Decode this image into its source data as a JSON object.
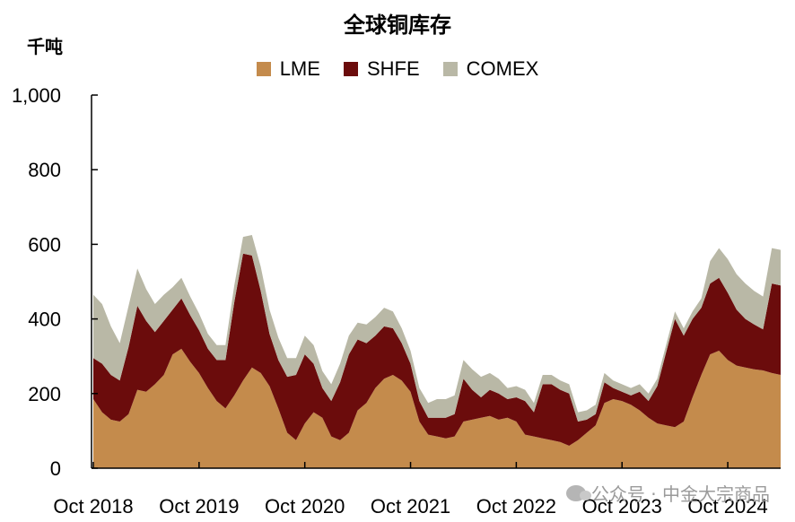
{
  "chart_data": {
    "type": "area",
    "stacked": true,
    "title": "全球铜库存",
    "ylabel": "千吨",
    "ylim": [
      0,
      1000
    ],
    "yticks": [
      "0",
      "200",
      "400",
      "600",
      "800",
      "1,000"
    ],
    "xticks": [
      "Oct 2018",
      "Oct 2019",
      "Oct 2020",
      "Oct 2021",
      "Oct 2022",
      "Oct 2023",
      "Oct 2024"
    ],
    "legend_position": "top-center",
    "x": [
      "2018-10",
      "2018-11",
      "2018-12",
      "2019-01",
      "2019-02",
      "2019-03",
      "2019-04",
      "2019-05",
      "2019-06",
      "2019-07",
      "2019-08",
      "2019-09",
      "2019-10",
      "2019-11",
      "2019-12",
      "2020-01",
      "2020-02",
      "2020-03",
      "2020-04",
      "2020-05",
      "2020-06",
      "2020-07",
      "2020-08",
      "2020-09",
      "2020-10",
      "2020-11",
      "2020-12",
      "2021-01",
      "2021-02",
      "2021-03",
      "2021-04",
      "2021-05",
      "2021-06",
      "2021-07",
      "2021-08",
      "2021-09",
      "2021-10",
      "2021-11",
      "2021-12",
      "2022-01",
      "2022-02",
      "2022-03",
      "2022-04",
      "2022-05",
      "2022-06",
      "2022-07",
      "2022-08",
      "2022-09",
      "2022-10",
      "2022-11",
      "2022-12",
      "2023-01",
      "2023-02",
      "2023-03",
      "2023-04",
      "2023-05",
      "2023-06",
      "2023-07",
      "2023-08",
      "2023-09",
      "2023-10",
      "2023-11",
      "2023-12",
      "2024-01",
      "2024-02",
      "2024-03",
      "2024-04",
      "2024-05",
      "2024-06",
      "2024-07",
      "2024-08",
      "2024-09",
      "2024-10",
      "2024-11",
      "2024-12",
      "2025-01",
      "2025-02",
      "2025-03",
      "2025-04"
    ],
    "series": [
      {
        "name": "LME",
        "color": "#c48b4c",
        "values": [
          185,
          150,
          130,
          125,
          145,
          210,
          205,
          225,
          250,
          305,
          320,
          285,
          255,
          215,
          180,
          160,
          195,
          235,
          270,
          255,
          220,
          160,
          95,
          75,
          120,
          150,
          135,
          85,
          75,
          95,
          155,
          175,
          215,
          240,
          250,
          235,
          205,
          125,
          90,
          85,
          80,
          85,
          125,
          130,
          135,
          140,
          130,
          135,
          125,
          90,
          85,
          80,
          75,
          70,
          60,
          75,
          95,
          115,
          175,
          185,
          180,
          170,
          155,
          135,
          120,
          115,
          110,
          125,
          190,
          250,
          305,
          315,
          290,
          275,
          270,
          265,
          262,
          255,
          250
        ]
      },
      {
        "name": "SHFE",
        "color": "#6b0c0c",
        "values": [
          110,
          130,
          120,
          110,
          180,
          225,
          190,
          140,
          145,
          120,
          135,
          125,
          115,
          105,
          110,
          130,
          250,
          340,
          300,
          220,
          140,
          130,
          150,
          175,
          185,
          130,
          80,
          95,
          155,
          210,
          190,
          160,
          140,
          140,
          125,
          100,
          75,
          55,
          45,
          50,
          55,
          60,
          115,
          80,
          55,
          70,
          70,
          50,
          65,
          90,
          65,
          145,
          150,
          140,
          140,
          50,
          35,
          30,
          55,
          30,
          25,
          25,
          50,
          45,
          100,
          195,
          290,
          230,
          210,
          180,
          190,
          195,
          180,
          150,
          130,
          120,
          110,
          240,
          240
        ]
      },
      {
        "name": "COMEX",
        "color": "#b9b8a6",
        "values": [
          170,
          160,
          130,
          100,
          110,
          100,
          85,
          75,
          70,
          60,
          55,
          50,
          45,
          40,
          40,
          40,
          45,
          45,
          55,
          65,
          65,
          60,
          50,
          45,
          50,
          50,
          45,
          45,
          50,
          50,
          45,
          50,
          50,
          50,
          45,
          40,
          35,
          35,
          40,
          50,
          50,
          50,
          50,
          55,
          55,
          45,
          40,
          30,
          30,
          30,
          25,
          25,
          25,
          25,
          25,
          25,
          25,
          25,
          25,
          20,
          20,
          20,
          20,
          20,
          20,
          20,
          20,
          20,
          20,
          25,
          60,
          80,
          90,
          95,
          95,
          90,
          88,
          95,
          95
        ]
      }
    ]
  },
  "watermark": {
    "text": "公众号 · 中金大宗商品"
  }
}
